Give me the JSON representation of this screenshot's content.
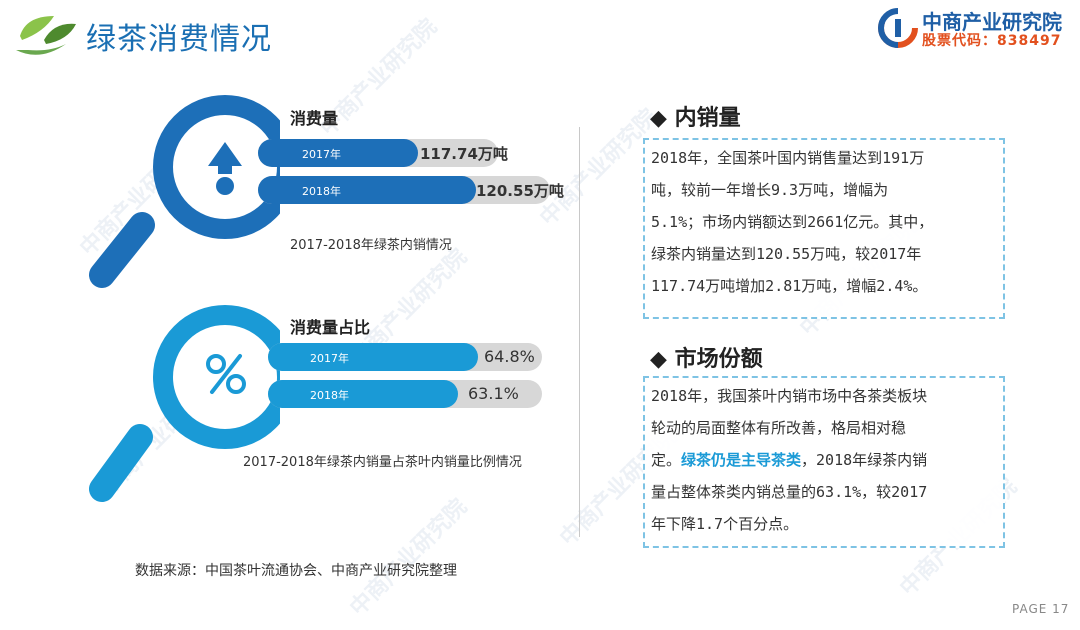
{
  "header": {
    "title": "绿茶消费情况",
    "brand_name": "中商产业研究院",
    "brand_stock": "股票代码：838497"
  },
  "watermark_text": "中商产业研究院",
  "consumption": {
    "label": "消费量",
    "bars": [
      {
        "year": "2017年",
        "value": "117.74万吨"
      },
      {
        "year": "2018年",
        "value": "120.55万吨"
      }
    ],
    "caption": "2017-2018年绿茶内销情况"
  },
  "share": {
    "label": "消费量占比",
    "bars": [
      {
        "year": "2017年",
        "value": "64.8%"
      },
      {
        "year": "2018年",
        "value": "63.1%"
      }
    ],
    "caption": "2017-2018年绿茶内销量占茶叶内销量比例情况"
  },
  "panel_domestic": {
    "title": "内销量",
    "lines": [
      "2018年，全国茶叶国内销售量达到191万",
      "吨，较前一年增长9.3万吨，增幅为",
      "5.1%；市场内销额达到2661亿元。其中，",
      "绿茶内销量达到120.55万吨，较2017年",
      "117.74万吨增加2.81万吨，增幅2.4%。"
    ]
  },
  "panel_market": {
    "title": "市场份额",
    "line1": "2018年，我国茶叶内销市场中各茶类板块",
    "line2": "轮动的局面整体有所改善，格局相对稳",
    "line3_prefix": "定。",
    "line3_highlight": "绿茶仍是主导茶类",
    "line3_suffix": "，2018年绿茶内销",
    "line4": "量占整体茶类内销总量的63.1%，较2017",
    "line5": "年下降1.7个百分点。"
  },
  "footer": {
    "source": "数据来源：中国茶叶流通协会、中商产业研究院整理",
    "page": "PAGE 17"
  },
  "colors": {
    "title_blue": "#1a6fb3",
    "magnifier_dark": "#1d6fb8",
    "magnifier_light": "#1a9ad6",
    "highlight": "#1a9ad6",
    "brand_orange": "#e2501e"
  }
}
